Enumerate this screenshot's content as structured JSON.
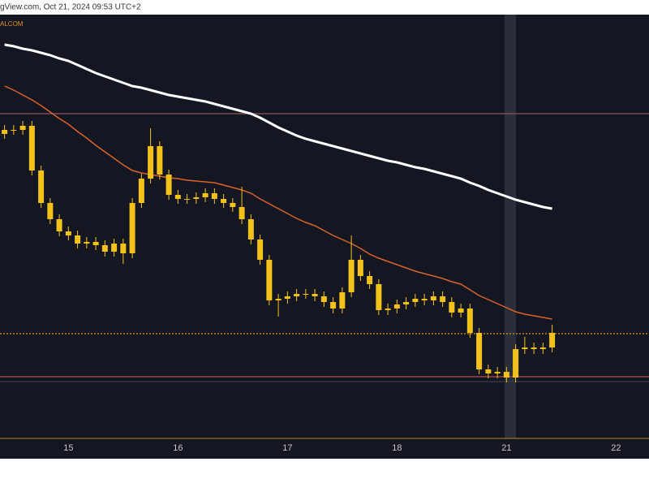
{
  "header": {
    "source": "gView.com, Oct 21, 2024 09:53 UTC+2",
    "brand": "ALCOM"
  },
  "chart_data": {
    "type": "candlestick",
    "ylim": [
      0,
      522
    ],
    "candle_color": "#f2c21b",
    "categories": [
      null,
      null,
      null,
      null,
      null,
      null,
      null,
      "15",
      null,
      null,
      null,
      null,
      null,
      null,
      null,
      null,
      null,
      null,
      null,
      "16",
      null,
      null,
      null,
      null,
      null,
      null,
      null,
      null,
      null,
      null,
      null,
      "17",
      null,
      null,
      null,
      null,
      null,
      null,
      null,
      null,
      null,
      null,
      null,
      "18",
      null,
      null,
      null,
      null,
      null,
      null,
      null,
      null,
      null,
      null,
      null,
      "21",
      null,
      null,
      null,
      null,
      null,
      null,
      null,
      null,
      null,
      null,
      null,
      "22",
      null,
      null
    ],
    "open": [
      375,
      380,
      380,
      385,
      330,
      290,
      270,
      255,
      250,
      240,
      242,
      238,
      230,
      240,
      228,
      290,
      320,
      360,
      325,
      300,
      295,
      295,
      297,
      302,
      295,
      290,
      285,
      270,
      245,
      220,
      170,
      172,
      175,
      178,
      178,
      175,
      168,
      160,
      180,
      220,
      200,
      190,
      158,
      160,
      165,
      168,
      172,
      170,
      175,
      168,
      155,
      160,
      130,
      85,
      80,
      82,
      75,
      110,
      112,
      110,
      112,
      null,
      null,
      null,
      null,
      null,
      null,
      null,
      null,
      null
    ],
    "high": [
      386,
      386,
      391,
      391,
      336,
      296,
      276,
      261,
      256,
      248,
      248,
      244,
      246,
      246,
      296,
      326,
      382,
      366,
      331,
      306,
      301,
      303,
      308,
      308,
      301,
      296,
      310,
      276,
      251,
      226,
      178,
      181,
      184,
      184,
      184,
      181,
      174,
      186,
      250,
      226,
      206,
      196,
      166,
      171,
      174,
      178,
      178,
      181,
      181,
      174,
      166,
      166,
      136,
      91,
      88,
      88,
      116,
      125,
      118,
      118,
      140,
      null,
      null,
      null,
      null,
      null,
      null,
      null,
      null,
      null
    ],
    "low": [
      369,
      374,
      374,
      324,
      284,
      264,
      249,
      244,
      234,
      234,
      232,
      224,
      224,
      215,
      222,
      284,
      314,
      319,
      294,
      289,
      289,
      289,
      291,
      289,
      284,
      279,
      264,
      239,
      214,
      164,
      150,
      166,
      169,
      172,
      169,
      162,
      154,
      154,
      174,
      194,
      184,
      152,
      152,
      154,
      159,
      162,
      164,
      164,
      162,
      149,
      149,
      124,
      79,
      74,
      74,
      69,
      69,
      104,
      104,
      104,
      106,
      null,
      null,
      null,
      null,
      null,
      null,
      null,
      null,
      null
    ],
    "close": [
      380,
      380,
      385,
      330,
      290,
      270,
      255,
      250,
      240,
      242,
      238,
      230,
      240,
      228,
      290,
      320,
      360,
      325,
      300,
      295,
      295,
      297,
      302,
      295,
      290,
      285,
      270,
      245,
      220,
      170,
      172,
      175,
      178,
      178,
      175,
      168,
      160,
      180,
      220,
      200,
      190,
      158,
      160,
      165,
      168,
      172,
      170,
      175,
      168,
      155,
      160,
      130,
      85,
      80,
      82,
      75,
      110,
      112,
      110,
      112,
      130,
      null,
      null,
      null,
      null,
      null,
      null,
      null,
      null,
      null
    ],
    "overlays": [
      {
        "color": "#ffffff",
        "values": [
          485,
          483,
          480,
          478,
          475,
          472,
          468,
          465,
          460,
          455,
          450,
          446,
          442,
          438,
          434,
          432,
          429,
          426,
          423,
          421,
          419,
          417,
          415,
          412,
          409,
          406,
          403,
          400,
          395,
          389,
          383,
          378,
          373,
          369,
          366,
          363,
          360,
          357,
          354,
          351,
          348,
          345,
          342,
          340,
          337,
          334,
          332,
          329,
          326,
          323,
          320,
          315,
          311,
          306,
          302,
          298,
          294,
          291,
          288,
          285,
          283,
          null,
          null,
          null,
          null,
          null,
          null,
          null,
          null,
          null
        ]
      },
      {
        "color": "#d9622b",
        "values": [
          434,
          429,
          423,
          417,
          410,
          402,
          394,
          387,
          378,
          370,
          361,
          353,
          345,
          337,
          330,
          327,
          325,
          323,
          321,
          320,
          318,
          317,
          316,
          315,
          312,
          309,
          306,
          302,
          295,
          289,
          283,
          277,
          271,
          266,
          262,
          256,
          250,
          245,
          240,
          234,
          227,
          222,
          218,
          214,
          210,
          206,
          203,
          200,
          197,
          193,
          190,
          183,
          176,
          171,
          166,
          161,
          156,
          153,
          151,
          149,
          147,
          null,
          null,
          null,
          null,
          null,
          null,
          null,
          null,
          null
        ]
      }
    ],
    "levels": [
      {
        "value": 400,
        "color": "#8a5a5a",
        "dash": false
      },
      {
        "value": 129,
        "color": "#e0902a",
        "dash": true
      },
      {
        "value": 70,
        "color": "#3a3e4a",
        "dash": false
      },
      {
        "value": 76,
        "color": "#b84a4a",
        "dash": false
      }
    ]
  }
}
